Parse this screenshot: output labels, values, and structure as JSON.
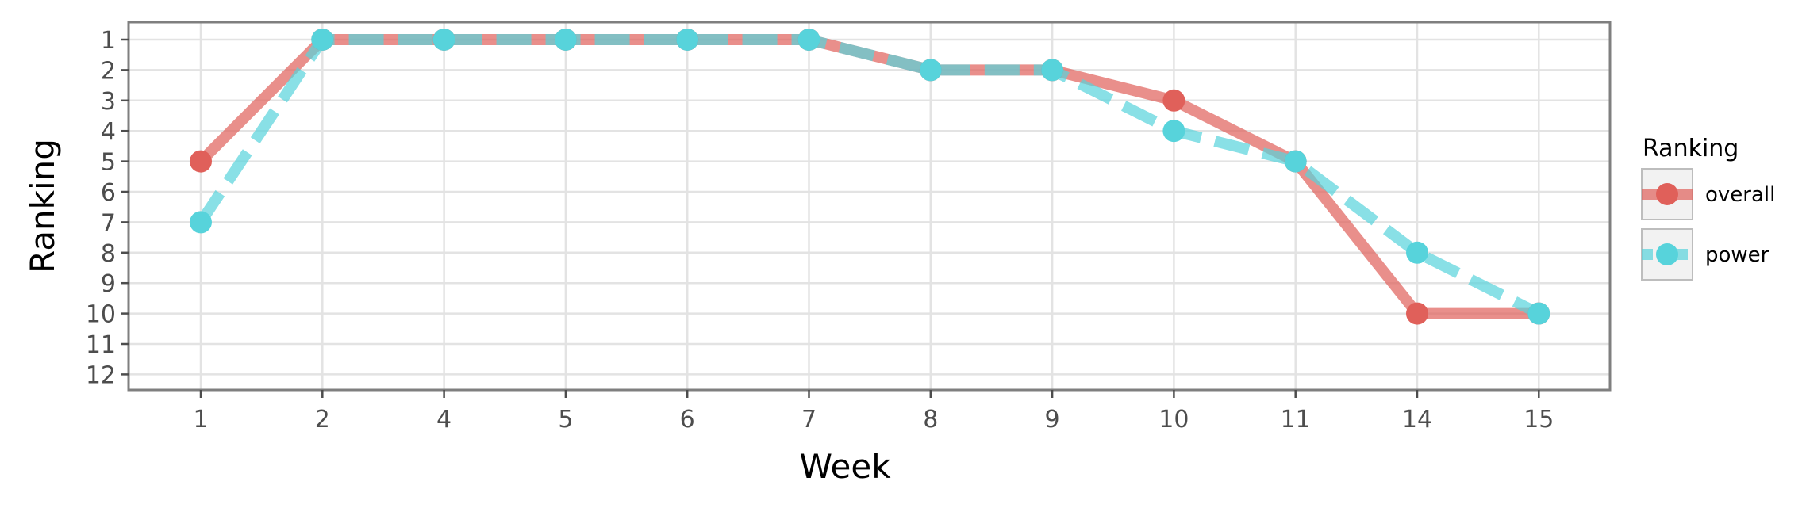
{
  "chart_data": {
    "type": "line",
    "xlabel": "Week",
    "ylabel": "Ranking",
    "x": [
      "1",
      "2",
      "4",
      "5",
      "6",
      "7",
      "8",
      "9",
      "10",
      "11",
      "14",
      "15"
    ],
    "yticks": [
      1,
      2,
      3,
      4,
      5,
      6,
      7,
      8,
      9,
      10,
      11,
      12
    ],
    "ylim": [
      12.5,
      0.5
    ],
    "y_reversed": true,
    "grid": true,
    "legend": {
      "title": "Ranking",
      "placement": "right"
    },
    "series": [
      {
        "name": "overall",
        "color": "#E0605A",
        "line_style": "solid",
        "values": [
          5,
          1,
          1,
          1,
          1,
          1,
          2,
          2,
          3,
          5,
          10,
          10
        ]
      },
      {
        "name": "power",
        "color": "#57D3DB",
        "line_style": "dashed",
        "values": [
          7,
          1,
          1,
          1,
          1,
          1,
          2,
          2,
          4,
          5,
          8,
          10
        ]
      }
    ]
  }
}
